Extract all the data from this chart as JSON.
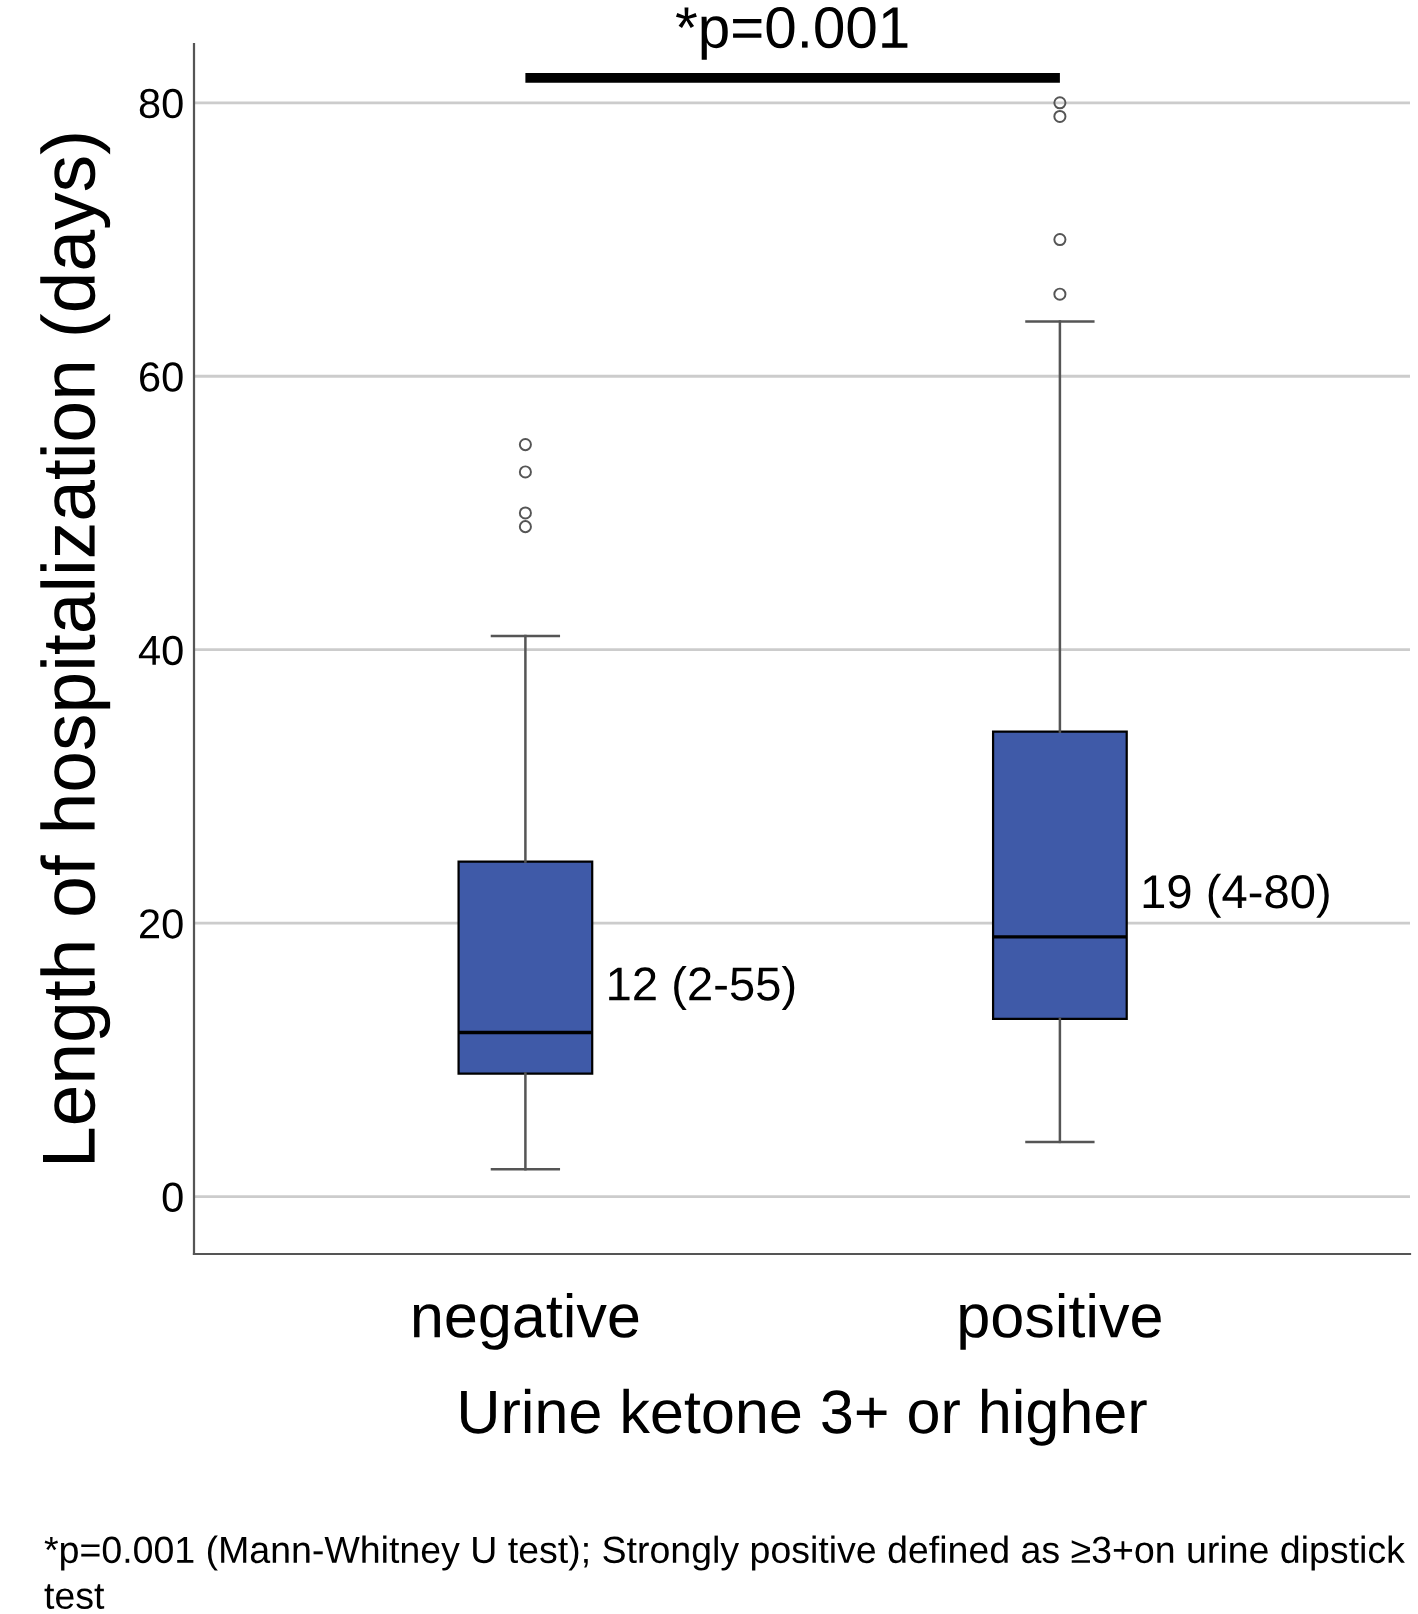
{
  "chart_data": {
    "type": "box",
    "xlabel": "Urine ketone 3+ or higher",
    "ylabel": "Length of hospitalization (days)",
    "categories": [
      "negative",
      "positive"
    ],
    "boxes": [
      {
        "low": 2,
        "q1": 9,
        "median": 12,
        "q3": 24.5,
        "high": 41,
        "outliers": [
          49,
          50,
          53,
          55
        ]
      },
      {
        "low": 4,
        "q1": 13,
        "median": 19,
        "q3": 34,
        "high": 64,
        "outliers": [
          66,
          70,
          79,
          80
        ]
      }
    ],
    "color": "#3f5aa8",
    "ylim": [
      -4.2,
      84.3
    ],
    "yticks": [
      0,
      20,
      40,
      60,
      80
    ],
    "grid": "y",
    "annotations": [
      "12 (2-55)",
      "19 (4-80)",
      "*p=0.001",
      "*p=0.001 (Mann-Whitney U test); Strongly positive defined as ≥3+on urine dipstick test"
    ]
  }
}
